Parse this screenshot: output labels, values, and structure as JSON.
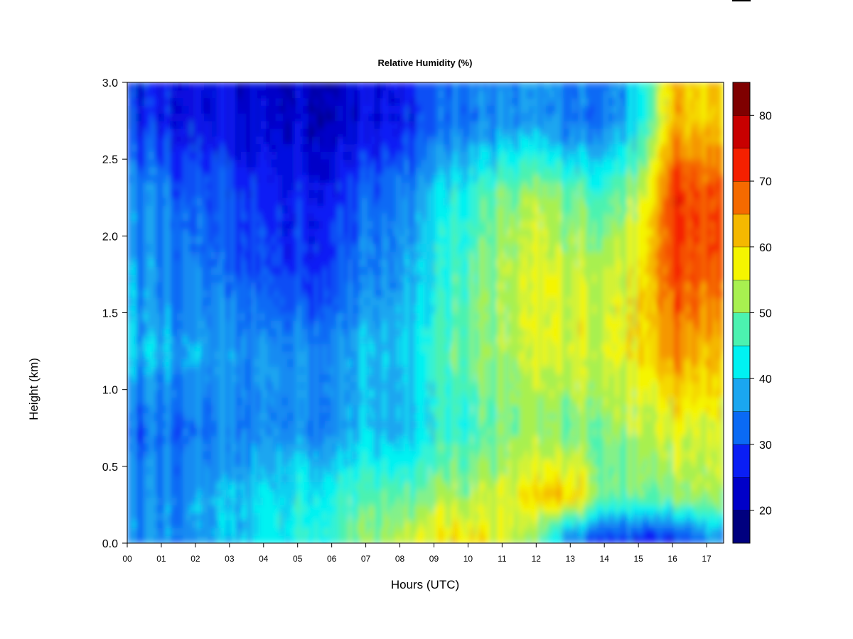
{
  "chart_data": {
    "type": "heatmap",
    "title": "Relative Humidity (%)",
    "xlabel": "Hours (UTC)",
    "ylabel": "Height (km)",
    "xlim": [
      0,
      17.5
    ],
    "ylim": [
      0,
      3
    ],
    "x_ticks": [
      "00",
      "01",
      "02",
      "03",
      "04",
      "05",
      "06",
      "07",
      "08",
      "09",
      "10",
      "11",
      "12",
      "13",
      "14",
      "15",
      "16",
      "17"
    ],
    "y_ticks": [
      "0.0",
      "0.5",
      "1.0",
      "1.5",
      "2.0",
      "2.5",
      "3.0"
    ],
    "colorbar": {
      "range": [
        15,
        85
      ],
      "levels": [
        15,
        20,
        25,
        30,
        35,
        40,
        45,
        50,
        55,
        60,
        65,
        70,
        75,
        80,
        85
      ],
      "colors": [
        "#00007f",
        "#0000c8",
        "#0a1ef5",
        "#0a6af5",
        "#1aa6f0",
        "#00f2f2",
        "#4cf2b0",
        "#a8f050",
        "#f5f500",
        "#f5b800",
        "#f56a00",
        "#f52000",
        "#c80000",
        "#7f0000"
      ],
      "tick_labels": [
        "20",
        "30",
        "40",
        "50",
        "60",
        "70",
        "80"
      ]
    },
    "heights_km": [
      0.05,
      0.3,
      0.75,
      1.25,
      1.75,
      2.25,
      2.75
    ],
    "hours_utc": [
      0,
      1,
      2,
      3,
      4,
      5,
      6,
      7,
      8,
      9,
      10,
      11,
      12,
      13,
      14,
      15,
      16,
      17
    ],
    "values": [
      [
        36,
        36,
        36,
        38,
        42,
        44,
        46,
        50,
        54,
        57,
        59,
        56,
        48,
        36,
        30,
        28,
        28,
        35
      ],
      [
        36,
        35,
        36,
        38,
        41,
        43,
        45,
        47,
        49,
        51,
        53,
        55,
        59,
        63,
        50,
        48,
        50,
        52
      ],
      [
        32,
        33,
        32,
        33,
        35,
        35,
        36,
        38,
        39,
        43,
        46,
        49,
        50,
        50,
        51,
        52,
        56,
        55
      ],
      [
        40,
        38,
        37,
        36,
        36,
        36,
        36,
        38,
        40,
        45,
        50,
        52,
        54,
        56,
        56,
        58,
        65,
        62
      ],
      [
        38,
        35,
        33,
        31,
        30,
        29,
        30,
        33,
        37,
        42,
        48,
        52,
        55,
        55,
        55,
        57,
        70,
        68
      ],
      [
        36,
        34,
        31,
        29,
        28,
        27,
        28,
        31,
        35,
        40,
        46,
        50,
        52,
        50,
        48,
        52,
        72,
        70
      ],
      [
        28,
        27,
        25,
        24,
        23,
        23,
        22,
        24,
        27,
        31,
        34,
        35,
        35,
        34,
        34,
        40,
        62,
        60
      ]
    ]
  }
}
